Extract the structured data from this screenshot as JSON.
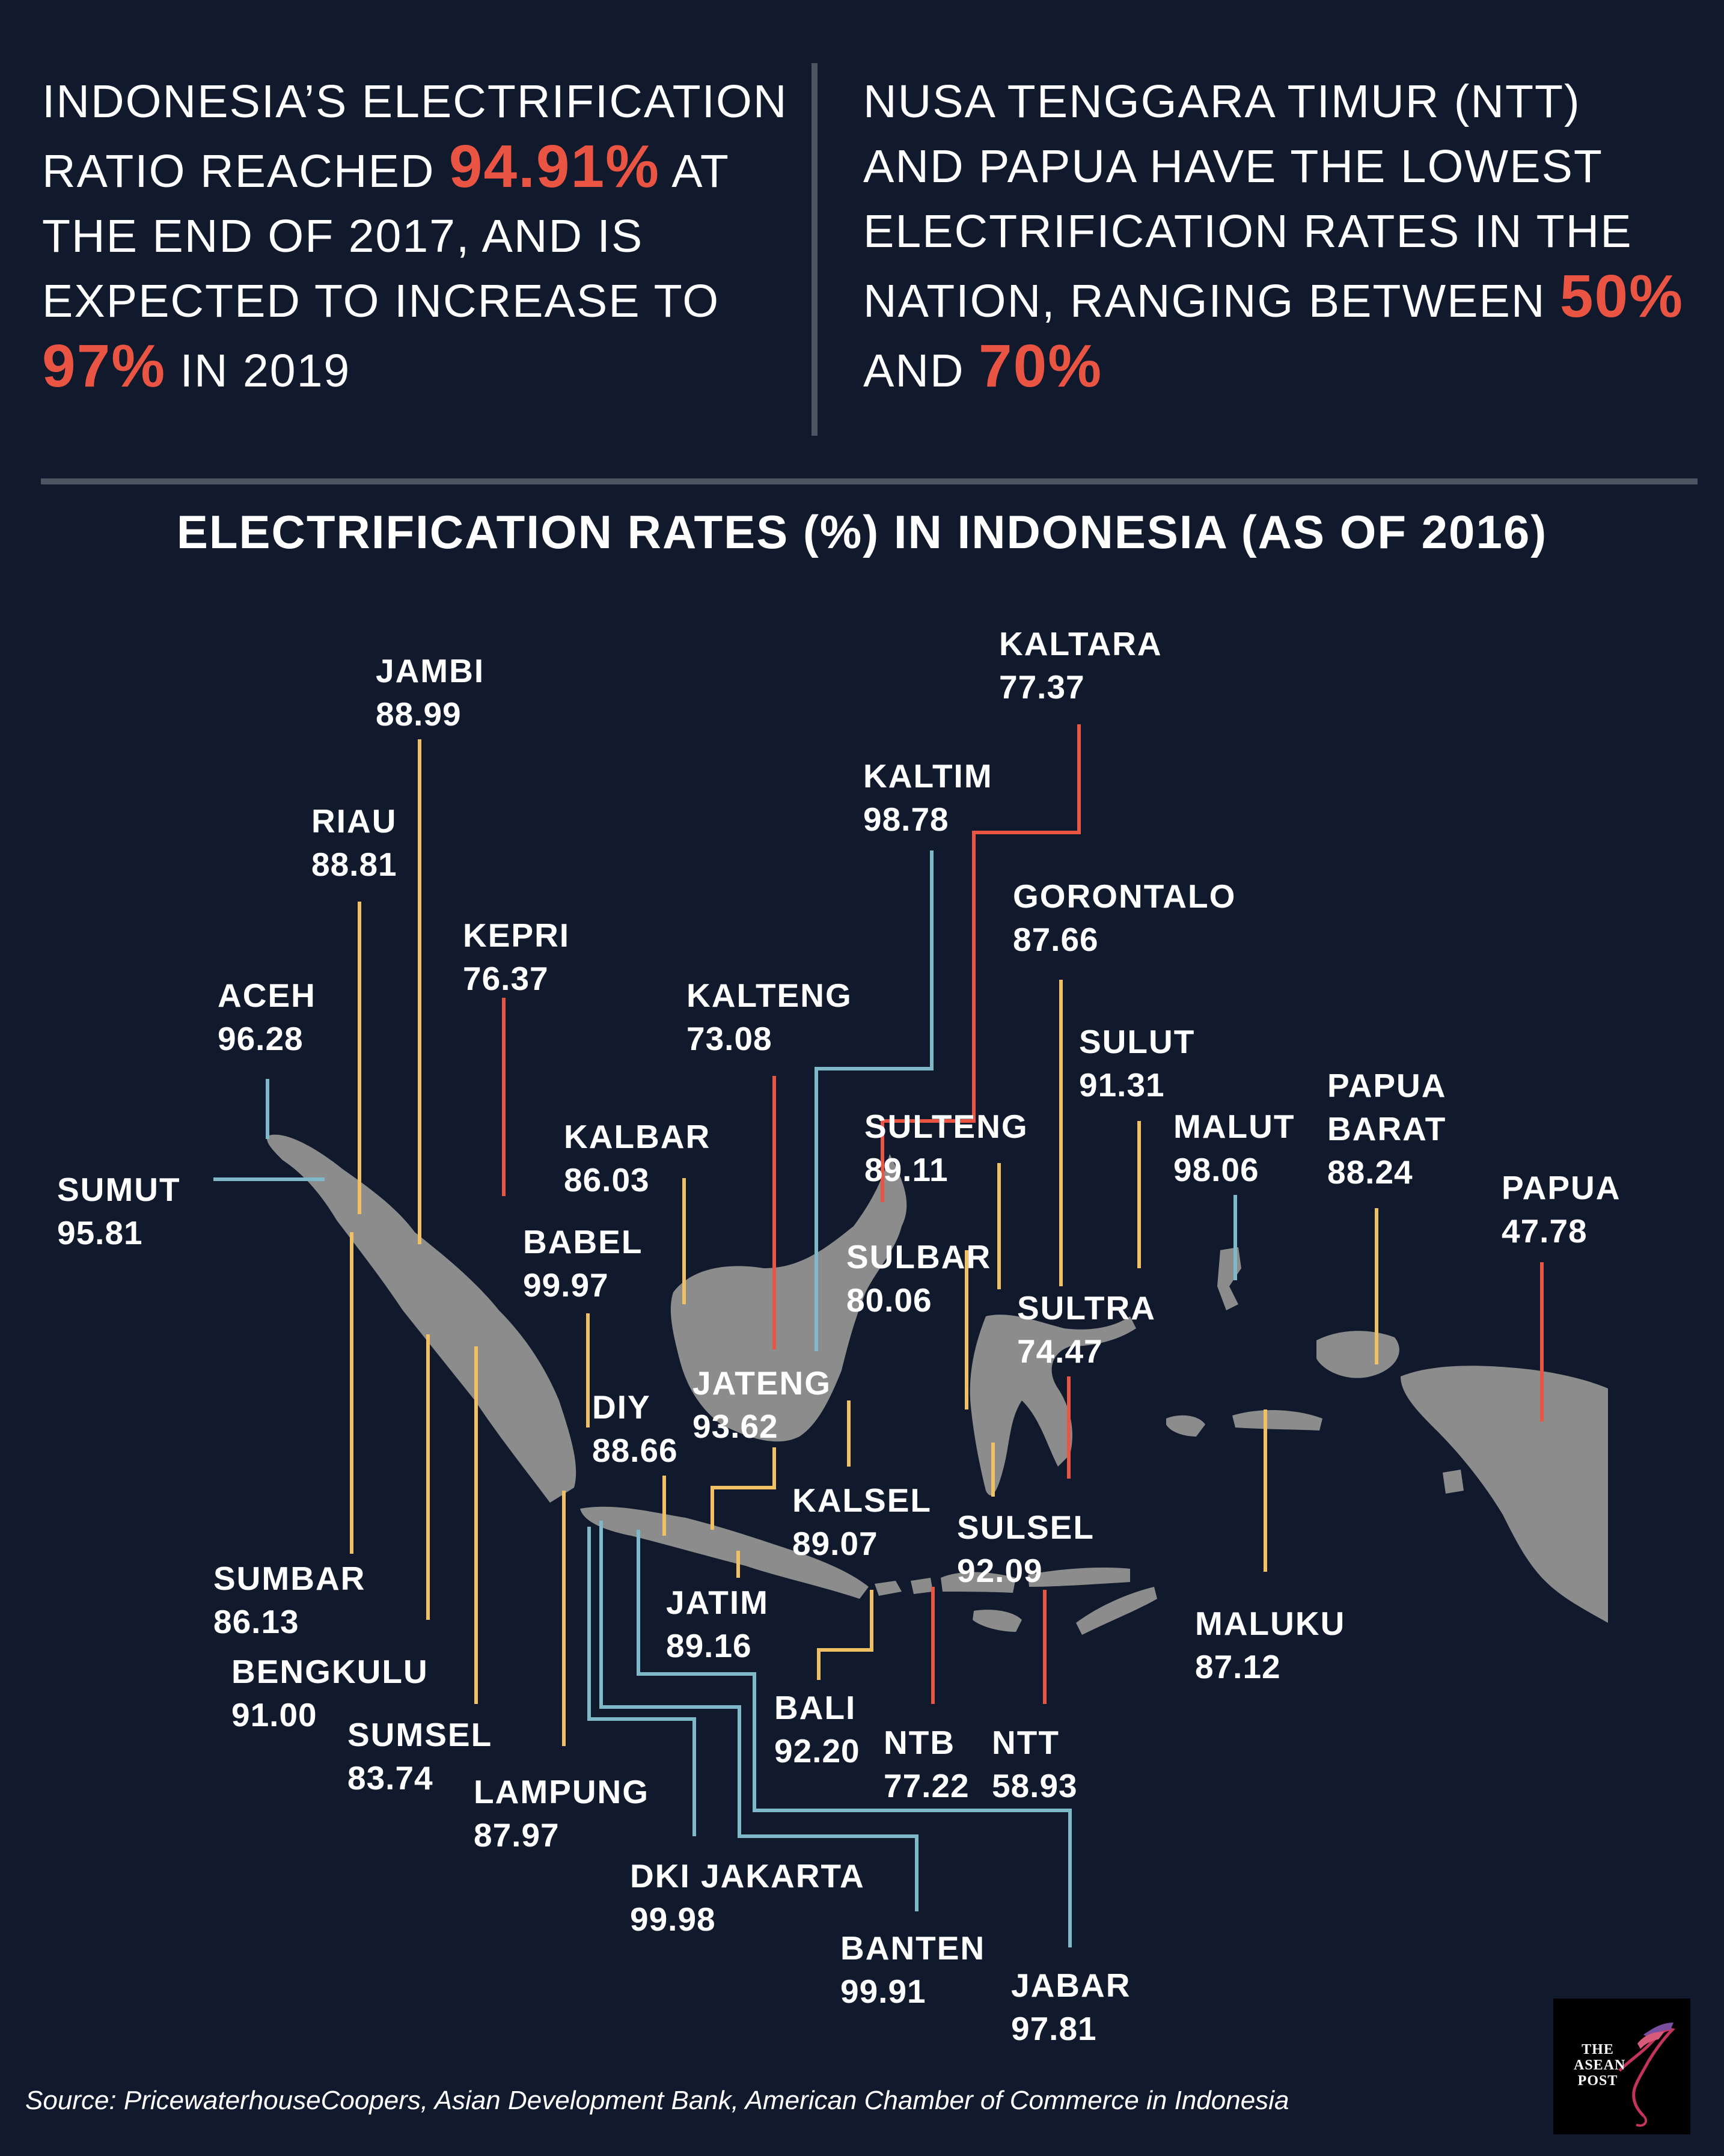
{
  "intro_left": {
    "part1": "INDONESIA’S ELECTRIFICATION RATIO REACHED ",
    "highlight1": "94.91%",
    "part2": " AT THE END OF 2017, AND IS EXPECTED TO INCREASE TO ",
    "highlight2": "97%",
    "part3": " IN 2019"
  },
  "intro_right": {
    "part1": "NUSA TENGGARA TIMUR (NTT) AND PAPUA HAVE THE LOWEST ELECTRIFICATION RATES IN THE NATION, RANGING BETWEEN ",
    "highlight1": "50%",
    "part2": " AND ",
    "highlight2": "70%"
  },
  "map_title": "ELECTRIFICATION RATES (%) IN INDONESIA (AS OF 2016)",
  "colors": {
    "background": "#111a2c",
    "land": "#8c8c8c",
    "highlight": "#ea5443",
    "line_low": "#ea5443",
    "line_mid": "#f1c062",
    "line_high": "#7fb9c9"
  },
  "provinces": [
    {
      "name": "ACEH",
      "value": "96.28",
      "color": "#7fb9c9"
    },
    {
      "name": "SUMUT",
      "value": "95.81",
      "color": "#7fb9c9"
    },
    {
      "name": "RIAU",
      "value": "88.81",
      "color": "#f1c062"
    },
    {
      "name": "JAMBI",
      "value": "88.99",
      "color": "#f1c062"
    },
    {
      "name": "KEPRI",
      "value": "76.37",
      "color": "#ea5443"
    },
    {
      "name": "SUMBAR",
      "value": "86.13",
      "color": "#f1c062"
    },
    {
      "name": "BENGKULU",
      "value": "91.00",
      "color": "#f1c062"
    },
    {
      "name": "SUMSEL",
      "value": "83.74",
      "color": "#f1c062"
    },
    {
      "name": "LAMPUNG",
      "value": "87.97",
      "color": "#f1c062"
    },
    {
      "name": "BABEL",
      "value": "99.97",
      "color": "#f1c062"
    },
    {
      "name": "DKI JAKARTA",
      "value": "99.98",
      "color": "#7fb9c9"
    },
    {
      "name": "BANTEN",
      "value": "99.91",
      "color": "#7fb9c9"
    },
    {
      "name": "JABAR",
      "value": "97.81",
      "color": "#7fb9c9"
    },
    {
      "name": "JATENG",
      "value": "93.62",
      "color": "#f1c062"
    },
    {
      "name": "DIY",
      "value": "88.66",
      "color": "#f1c062"
    },
    {
      "name": "JATIM",
      "value": "89.16",
      "color": "#f1c062"
    },
    {
      "name": "BALI",
      "value": "92.20",
      "color": "#f1c062"
    },
    {
      "name": "NTB",
      "value": "77.22",
      "color": "#ea5443"
    },
    {
      "name": "NTT",
      "value": "58.93",
      "color": "#ea5443"
    },
    {
      "name": "KALBAR",
      "value": "86.03",
      "color": "#f1c062"
    },
    {
      "name": "KALTENG",
      "value": "73.08",
      "color": "#ea5443"
    },
    {
      "name": "KALSEL",
      "value": "89.07",
      "color": "#f1c062"
    },
    {
      "name": "KALTIM",
      "value": "98.78",
      "color": "#7fb9c9"
    },
    {
      "name": "KALTARA",
      "value": "77.37",
      "color": "#ea5443"
    },
    {
      "name": "SULTENG",
      "value": "89.11",
      "color": "#f1c062"
    },
    {
      "name": "SULBAR",
      "value": "80.06",
      "color": "#f1c062"
    },
    {
      "name": "SULSEL",
      "value": "92.09",
      "color": "#f1c062"
    },
    {
      "name": "SULTRA",
      "value": "74.47",
      "color": "#ea5443"
    },
    {
      "name": "GORONTALO",
      "value": "87.66",
      "color": "#f1c062"
    },
    {
      "name": "SULUT",
      "value": "91.31",
      "color": "#f1c062"
    },
    {
      "name": "MALUT",
      "value": "98.06",
      "color": "#7fb9c9"
    },
    {
      "name": "MALUKU",
      "value": "87.12",
      "color": "#f1c062"
    },
    {
      "name": "PAPUA BARAT",
      "value": "88.24",
      "color": "#f1c062"
    },
    {
      "name": "PAPUA",
      "value": "47.78",
      "color": "#ea5443"
    }
  ],
  "source": "Source: PricewaterhouseCoopers, Asian Development Bank, American Chamber of Commerce in Indonesia",
  "logo": {
    "line1": "THE",
    "line2": "ASEAN",
    "line3": "POST"
  }
}
